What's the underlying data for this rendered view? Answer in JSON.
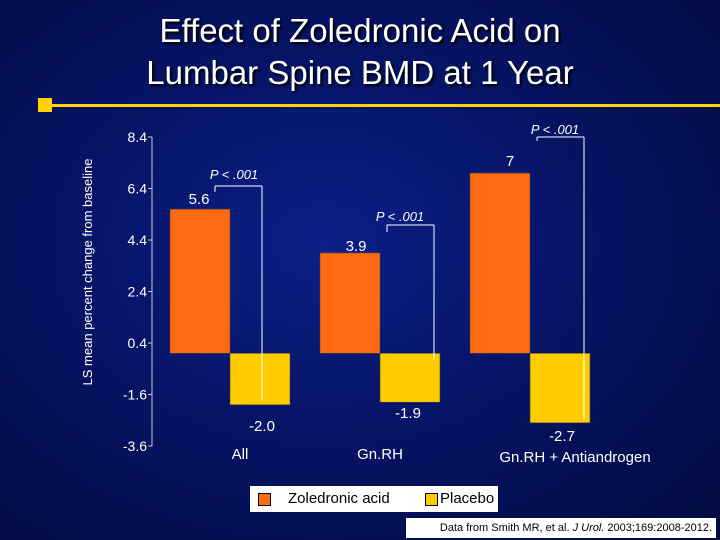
{
  "slide": {
    "title_line1": "Effect of Zoledronic Acid on",
    "title_line2": "Lumbar Spine BMD at 1 Year",
    "source_prefix": "Data from Smith MR, et al. ",
    "source_journal": "J Urol.",
    "source_suffix": " 2003;169:2008-2012."
  },
  "colors": {
    "zoledronic": "#ff6a12",
    "placebo": "#ffcc00",
    "background": "#061466",
    "accent_rule": "#ffd400"
  },
  "chart_data": {
    "type": "bar",
    "title": "Effect of Zoledronic Acid on Lumbar Spine BMD at 1 Year",
    "ylabel": "LS mean percent change from baseline",
    "ylim": [
      -3.6,
      8.4
    ],
    "yticks": [
      "8.4",
      "6.4",
      "4.4",
      "2.4",
      "0.4",
      "-1.6",
      "-3.6"
    ],
    "categories": [
      "All",
      "Gn.RH",
      "Gn.RH + Antiandrogen"
    ],
    "series": [
      {
        "name": "Zoledronic acid",
        "values": [
          5.6,
          3.9,
          7
        ],
        "labels": [
          "5.6",
          "3.9",
          "7"
        ]
      },
      {
        "name": "Placebo",
        "values": [
          -2.0,
          -1.9,
          -2.7
        ],
        "labels": [
          "-2.0",
          "-1.9",
          "-2.7"
        ]
      }
    ],
    "annotations": [
      "P < .001",
      "P < .001",
      "P < .001"
    ],
    "legend": "bottom",
    "grid": false
  }
}
